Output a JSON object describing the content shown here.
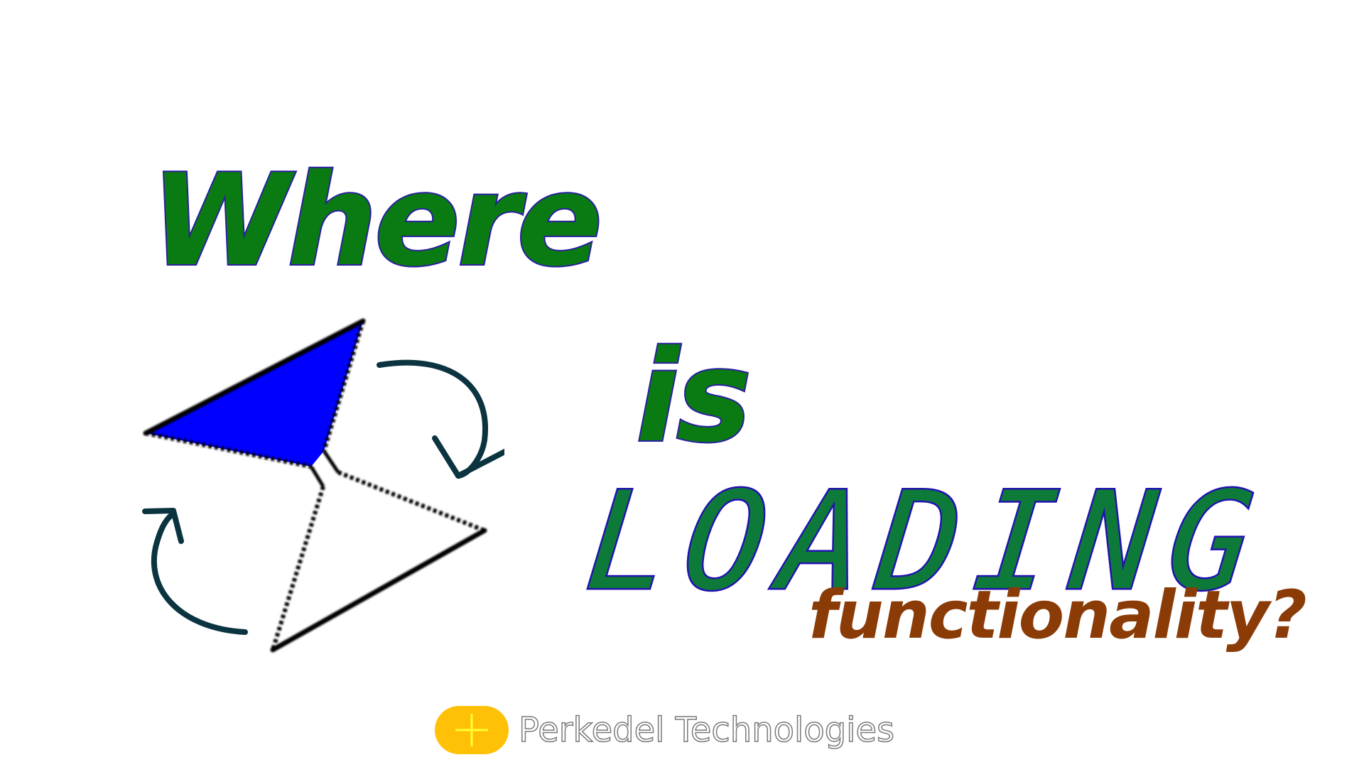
{
  "headline": {
    "word1": "Where",
    "word2": "is",
    "word3": "LOADING",
    "word4": "functionality?"
  },
  "brand": {
    "name": "Perkedel Technologies",
    "icon": "plus-icon"
  },
  "colors": {
    "background": "#ffffff",
    "headline_fill": "#0a7a12",
    "headline_outline": "#2a1fa0",
    "loading_fill": "#0d7a3a",
    "loading_outline": "#2212b0",
    "functionality_fill": "#8a3b06",
    "hourglass_top_fill": "#0000ff",
    "arrow_stroke": "#0b3440",
    "brand_badge": "#ffc107",
    "brand_plus": "#ffff33",
    "brand_text_outline": "#7a7a7a"
  },
  "icons": [
    "hourglass-icon",
    "rotate-arrow-icon",
    "plus-icon"
  ]
}
